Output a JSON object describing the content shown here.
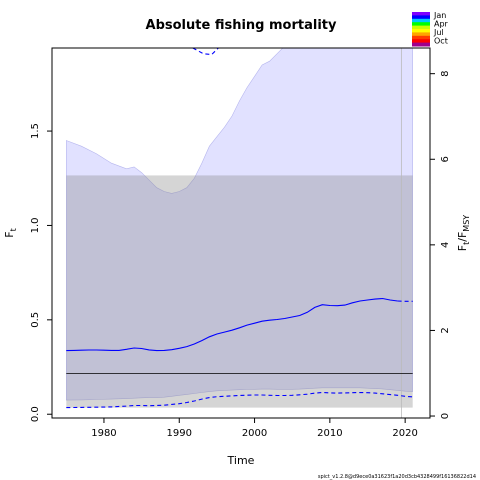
{
  "chart_data": {
    "type": "line",
    "title": "Absolute fishing mortality",
    "xlabel": "Time",
    "ylabel_left": "F",
    "ylabel_left_sub": "t",
    "ylabel_right": "F",
    "ylabel_right_sub": "t",
    "ylabel_right_over": "/F",
    "ylabel_right_over_sub": "MSY",
    "xlim": [
      1973.1,
      2023.3
    ],
    "ylim": [
      -0.02,
      1.94
    ],
    "ylim_right": [
      -0.046,
      8.6
    ],
    "x_ticks": [
      1980,
      1990,
      2000,
      2010,
      2020
    ],
    "y_ticks": [
      0.0,
      0.5,
      1.0,
      1.5
    ],
    "y_tick_labels": [
      "0.0",
      "0.5",
      "1.0",
      "1.5"
    ],
    "right_ticks": [
      0,
      2,
      4,
      6,
      8
    ],
    "legend_labels": [
      "Jan",
      "Apr",
      "Jul",
      "Oct"
    ],
    "legend_colors": [
      "#7f00ff",
      "#0000ff",
      "#00c8ff",
      "#00ff00",
      "#c8ff00",
      "#ffff00",
      "#ffa500",
      "#ff3c00",
      "#ff0000",
      "#a0008c"
    ],
    "footnote": "spict_v1.2.8@d9ece0a31623f1a20d3cb4328499f16136822d14",
    "fmsy_line": 0.215,
    "fmsy_band": {
      "x": [
        1975,
        2021
      ],
      "lower": 0.035,
      "upper": 1.265
    },
    "fmsy_band_lower_grey": {
      "lower": 0.035,
      "upper": 0.075
    },
    "vertical_line_x": 2019.5,
    "ci_band": {
      "x": [
        1975,
        1977,
        1979,
        1981,
        1983,
        1984,
        1985,
        1986,
        1987,
        1988,
        1989,
        1990,
        1991,
        1992,
        1993,
        1994,
        1995,
        1996,
        1997,
        1998,
        1999,
        2000,
        2001,
        2002,
        2003,
        2004,
        2005,
        2006,
        2007,
        2008,
        2009,
        2010,
        2011,
        2012,
        2013,
        2014,
        2015,
        2016,
        2017,
        2018,
        2019,
        2020,
        2021
      ],
      "lower": [
        0.075,
        0.076,
        0.078,
        0.08,
        0.083,
        0.085,
        0.087,
        0.088,
        0.088,
        0.09,
        0.095,
        0.1,
        0.105,
        0.11,
        0.115,
        0.12,
        0.124,
        0.126,
        0.128,
        0.13,
        0.131,
        0.132,
        0.133,
        0.133,
        0.132,
        0.132,
        0.132,
        0.133,
        0.135,
        0.138,
        0.14,
        0.14,
        0.14,
        0.14,
        0.14,
        0.14,
        0.138,
        0.136,
        0.134,
        0.13,
        0.126,
        0.122,
        0.12
      ],
      "upper": [
        1.45,
        1.42,
        1.38,
        1.33,
        1.3,
        1.31,
        1.28,
        1.24,
        1.2,
        1.18,
        1.17,
        1.18,
        1.2,
        1.25,
        1.33,
        1.42,
        1.47,
        1.52,
        1.58,
        1.66,
        1.73,
        1.79,
        1.85,
        1.87,
        1.91,
        1.95,
        2.0,
        2.05,
        2.1,
        2.15,
        2.2,
        2.25,
        2.3,
        2.35,
        2.4,
        2.45,
        2.5,
        2.55,
        2.6,
        2.65,
        2.7,
        2.75,
        2.8
      ]
    },
    "series": [
      {
        "name": "",
        "style": "solid",
        "x": [
          1975,
          1976,
          1977,
          1978,
          1979,
          1980,
          1981,
          1982,
          1983,
          1984,
          1985,
          1986,
          1987,
          1988,
          1989,
          1990,
          1991,
          1992,
          1993,
          1994,
          1995,
          1996,
          1997,
          1998,
          1999,
          2000,
          2001,
          2002,
          2003,
          2004,
          2005,
          2006,
          2007,
          2008,
          2009,
          2010,
          2011,
          2012,
          2013,
          2014,
          2015,
          2016,
          2017,
          2018,
          2019
        ],
        "y": [
          0.337,
          0.338,
          0.339,
          0.34,
          0.34,
          0.339,
          0.338,
          0.338,
          0.344,
          0.351,
          0.348,
          0.341,
          0.337,
          0.338,
          0.342,
          0.349,
          0.358,
          0.372,
          0.39,
          0.41,
          0.425,
          0.435,
          0.445,
          0.458,
          0.472,
          0.482,
          0.493,
          0.498,
          0.502,
          0.507,
          0.515,
          0.523,
          0.54,
          0.566,
          0.58,
          0.576,
          0.575,
          0.578,
          0.59,
          0.6,
          0.605,
          0.61,
          0.613,
          0.605,
          0.6
        ]
      },
      {
        "name": "",
        "style": "dashed",
        "x": [
          2019,
          2020,
          2021
        ],
        "y": [
          0.6,
          0.598,
          0.598
        ]
      },
      {
        "name": "",
        "style": "dashed",
        "x": [
          1975,
          1977,
          1979,
          1981,
          1983,
          1984,
          1985,
          1986,
          1987,
          1988,
          1989,
          1990,
          1991,
          1992,
          1993,
          1994,
          1995,
          1996,
          1997,
          1998,
          1999,
          2000,
          2001,
          2002,
          2003,
          2004,
          2005,
          2006,
          2007,
          2008,
          2009,
          2010,
          2011,
          2012,
          2013,
          2014,
          2015,
          2016,
          2017,
          2018,
          2019,
          2020,
          2021
        ],
        "y": [
          0.035,
          0.036,
          0.037,
          0.039,
          0.043,
          0.046,
          0.046,
          0.045,
          0.046,
          0.048,
          0.052,
          0.056,
          0.062,
          0.07,
          0.08,
          0.088,
          0.093,
          0.095,
          0.097,
          0.099,
          0.101,
          0.102,
          0.102,
          0.1,
          0.099,
          0.099,
          0.1,
          0.103,
          0.106,
          0.112,
          0.115,
          0.113,
          0.112,
          0.113,
          0.114,
          0.115,
          0.114,
          0.112,
          0.108,
          0.104,
          0.1,
          0.095,
          0.092
        ]
      }
    ],
    "upper_dashed_segment": {
      "x": [
        1991.8,
        1993.2,
        1994.3,
        1995.2
      ],
      "y": [
        1.94,
        1.91,
        1.905,
        1.94
      ]
    }
  }
}
